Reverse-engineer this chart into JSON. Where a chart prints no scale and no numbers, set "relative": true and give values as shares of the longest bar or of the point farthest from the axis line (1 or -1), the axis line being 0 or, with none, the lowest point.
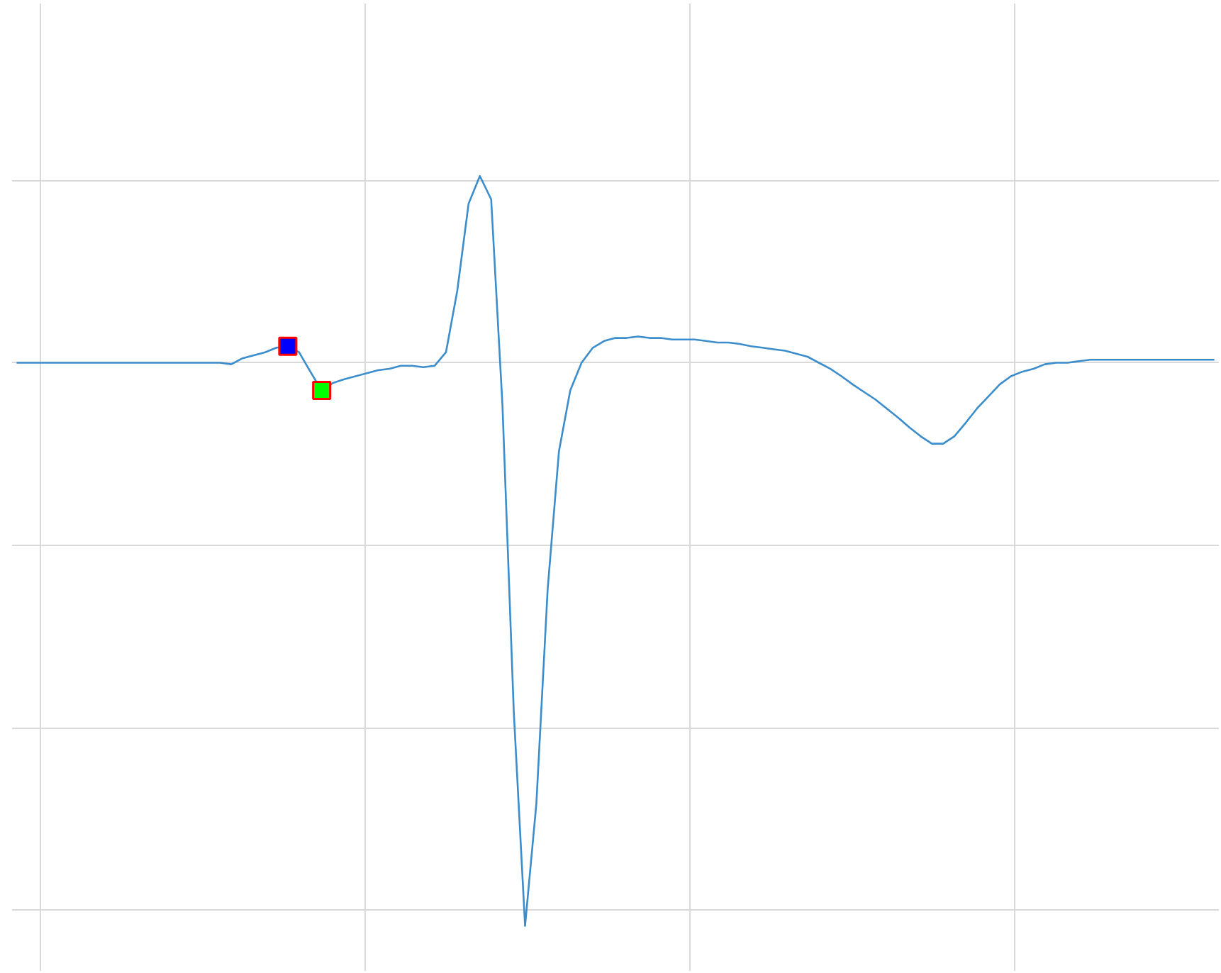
{
  "chart_data": {
    "type": "line",
    "relative": true,
    "grid": true,
    "categories": [
      null,
      null,
      null,
      null,
      null,
      null,
      null,
      null,
      null,
      null,
      null,
      null,
      null,
      null,
      null,
      null,
      null,
      null,
      null,
      null,
      null,
      null,
      null,
      null,
      null,
      null,
      null,
      null,
      null,
      null,
      null,
      null,
      null,
      null,
      null,
      null,
      null,
      null,
      null,
      null,
      null,
      null,
      null,
      null,
      null,
      null,
      null,
      null,
      null,
      null,
      null,
      null,
      null,
      null,
      null,
      null,
      null,
      null,
      null,
      null,
      null,
      null,
      null,
      null,
      null,
      null,
      null,
      null,
      null,
      null,
      null,
      null,
      null,
      null,
      null,
      null,
      null,
      null,
      null,
      null,
      null,
      null,
      null,
      null,
      null,
      null,
      null,
      null,
      null,
      null,
      null,
      null,
      null,
      null,
      null,
      null,
      null,
      null,
      null,
      null,
      null,
      null,
      null,
      null,
      null,
      null,
      null
    ],
    "series": [
      {
        "color": "#3c8dcc",
        "colors": [
          null,
          null,
          null,
          null,
          null,
          null,
          null,
          null,
          null,
          null,
          null,
          null,
          null,
          null,
          null,
          null,
          null,
          null,
          null,
          null,
          null,
          null,
          null,
          null,
          "#0000ff",
          null,
          null,
          "#00ff00",
          null,
          null,
          null,
          null,
          null,
          null,
          null,
          null,
          null,
          null,
          null,
          null,
          null,
          null,
          null,
          null,
          null,
          null,
          null,
          null,
          null,
          null,
          null,
          null,
          null,
          null,
          null,
          null,
          null,
          null,
          null,
          null,
          null,
          null,
          null,
          null,
          null,
          null,
          null,
          null,
          null,
          null,
          null,
          null,
          null,
          null,
          null,
          null,
          null,
          null,
          null,
          null,
          null,
          null,
          null,
          null,
          null,
          null,
          null,
          null,
          null,
          null,
          null,
          null,
          null,
          null,
          null,
          null,
          null,
          null,
          null,
          null,
          null,
          null,
          null,
          null,
          null,
          null,
          null
        ],
        "values": [
          0.751,
          0.751,
          0.751,
          0.751,
          0.751,
          0.751,
          0.751,
          0.751,
          0.751,
          0.751,
          0.751,
          0.751,
          0.751,
          0.751,
          0.751,
          0.751,
          0.751,
          0.751,
          0.751,
          0.749,
          0.757,
          0.761,
          0.765,
          0.771,
          0.773,
          0.765,
          0.739,
          0.714,
          0.724,
          0.729,
          0.733,
          0.737,
          0.741,
          0.743,
          0.747,
          0.747,
          0.745,
          0.747,
          0.765,
          0.847,
          0.963,
          1,
          0.969,
          0.694,
          0.286,
          0,
          0.163,
          0.449,
          0.633,
          0.714,
          0.751,
          0.771,
          0.78,
          0.784,
          0.784,
          0.786,
          0.784,
          0.784,
          0.782,
          0.782,
          0.782,
          0.78,
          0.778,
          0.778,
          0.776,
          0.773,
          0.771,
          0.769,
          0.767,
          0.763,
          0.759,
          0.751,
          0.743,
          0.733,
          0.722,
          0.712,
          0.702,
          0.69,
          0.678,
          0.665,
          0.653,
          0.643,
          0.643,
          0.653,
          0.671,
          0.69,
          0.706,
          0.722,
          0.733,
          0.739,
          0.743,
          0.749,
          0.751,
          0.751,
          0.753,
          0.755,
          0.755,
          0.755,
          0.755,
          0.755,
          0.755,
          0.755,
          0.755,
          0.755,
          0.755,
          0.755,
          0.755
        ]
      }
    ]
  }
}
